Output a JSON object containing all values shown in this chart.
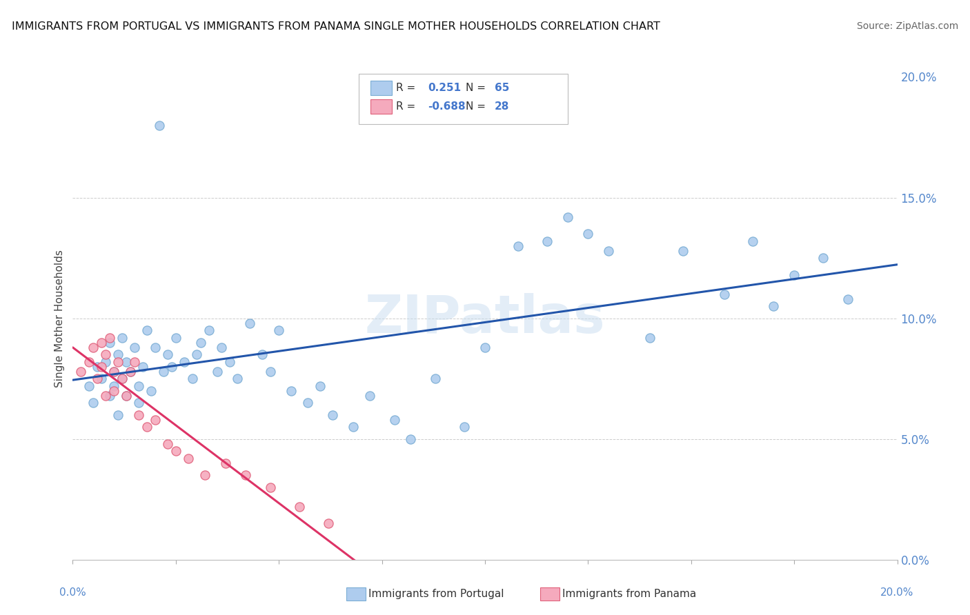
{
  "title": "IMMIGRANTS FROM PORTUGAL VS IMMIGRANTS FROM PANAMA SINGLE MOTHER HOUSEHOLDS CORRELATION CHART",
  "source": "Source: ZipAtlas.com",
  "ylabel": "Single Mother Households",
  "ytick_vals": [
    0.0,
    0.05,
    0.1,
    0.15,
    0.2
  ],
  "xlim": [
    0.0,
    0.2
  ],
  "ylim": [
    0.0,
    0.2
  ],
  "legend1_r": "0.251",
  "legend1_n": "65",
  "legend2_r": "-0.688",
  "legend2_n": "28",
  "portugal_color": "#aeccee",
  "panama_color": "#f5aabd",
  "portugal_edge": "#7aadd4",
  "panama_edge": "#e0607a",
  "trendline_portugal_color": "#2255aa",
  "trendline_panama_color": "#dd3366",
  "watermark": "ZIPatlas",
  "background_color": "#ffffff",
  "grid_color": "#cccccc",
  "portugal_scatter_x": [
    0.004,
    0.005,
    0.006,
    0.007,
    0.008,
    0.009,
    0.009,
    0.01,
    0.01,
    0.011,
    0.011,
    0.012,
    0.012,
    0.013,
    0.013,
    0.014,
    0.015,
    0.016,
    0.016,
    0.017,
    0.018,
    0.019,
    0.02,
    0.021,
    0.022,
    0.023,
    0.024,
    0.025,
    0.027,
    0.029,
    0.03,
    0.031,
    0.033,
    0.035,
    0.036,
    0.038,
    0.04,
    0.043,
    0.046,
    0.048,
    0.05,
    0.053,
    0.057,
    0.06,
    0.063,
    0.068,
    0.072,
    0.078,
    0.082,
    0.088,
    0.095,
    0.1,
    0.108,
    0.115,
    0.12,
    0.125,
    0.13,
    0.14,
    0.148,
    0.158,
    0.165,
    0.17,
    0.175,
    0.182,
    0.188
  ],
  "portugal_scatter_y": [
    0.072,
    0.065,
    0.08,
    0.075,
    0.082,
    0.068,
    0.09,
    0.078,
    0.072,
    0.085,
    0.06,
    0.075,
    0.092,
    0.068,
    0.082,
    0.078,
    0.088,
    0.072,
    0.065,
    0.08,
    0.095,
    0.07,
    0.088,
    0.18,
    0.078,
    0.085,
    0.08,
    0.092,
    0.082,
    0.075,
    0.085,
    0.09,
    0.095,
    0.078,
    0.088,
    0.082,
    0.075,
    0.098,
    0.085,
    0.078,
    0.095,
    0.07,
    0.065,
    0.072,
    0.06,
    0.055,
    0.068,
    0.058,
    0.05,
    0.075,
    0.055,
    0.088,
    0.13,
    0.132,
    0.142,
    0.135,
    0.128,
    0.092,
    0.128,
    0.11,
    0.132,
    0.105,
    0.118,
    0.125,
    0.108
  ],
  "panama_scatter_x": [
    0.002,
    0.004,
    0.005,
    0.006,
    0.007,
    0.007,
    0.008,
    0.008,
    0.009,
    0.01,
    0.01,
    0.011,
    0.012,
    0.013,
    0.014,
    0.015,
    0.016,
    0.018,
    0.02,
    0.023,
    0.025,
    0.028,
    0.032,
    0.037,
    0.042,
    0.048,
    0.055,
    0.062
  ],
  "panama_scatter_y": [
    0.078,
    0.082,
    0.088,
    0.075,
    0.09,
    0.08,
    0.085,
    0.068,
    0.092,
    0.078,
    0.07,
    0.082,
    0.075,
    0.068,
    0.078,
    0.082,
    0.06,
    0.055,
    0.058,
    0.048,
    0.045,
    0.042,
    0.035,
    0.04,
    0.035,
    0.03,
    0.022,
    0.015
  ]
}
